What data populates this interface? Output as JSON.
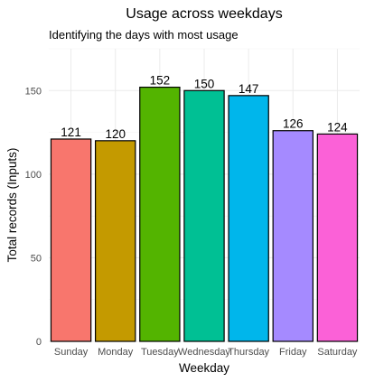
{
  "chart_data": {
    "type": "bar",
    "title": "Usage across weekdays",
    "subtitle": "Identifying the days with most usage",
    "xlabel": "Weekday",
    "ylabel": "Total records (Inputs)",
    "categories": [
      "Sunday",
      "Monday",
      "Tuesday",
      "Wednesday",
      "Thursday",
      "Friday",
      "Saturday"
    ],
    "values": [
      121,
      120,
      152,
      150,
      147,
      126,
      124
    ],
    "colors": [
      "#F8766D",
      "#C49A00",
      "#53B400",
      "#00C094",
      "#00B6EB",
      "#A58AFF",
      "#FB61D7"
    ],
    "ylim": [
      0,
      175
    ],
    "yticks": [
      0,
      50,
      100,
      150
    ],
    "grid": true,
    "legend": "none"
  }
}
